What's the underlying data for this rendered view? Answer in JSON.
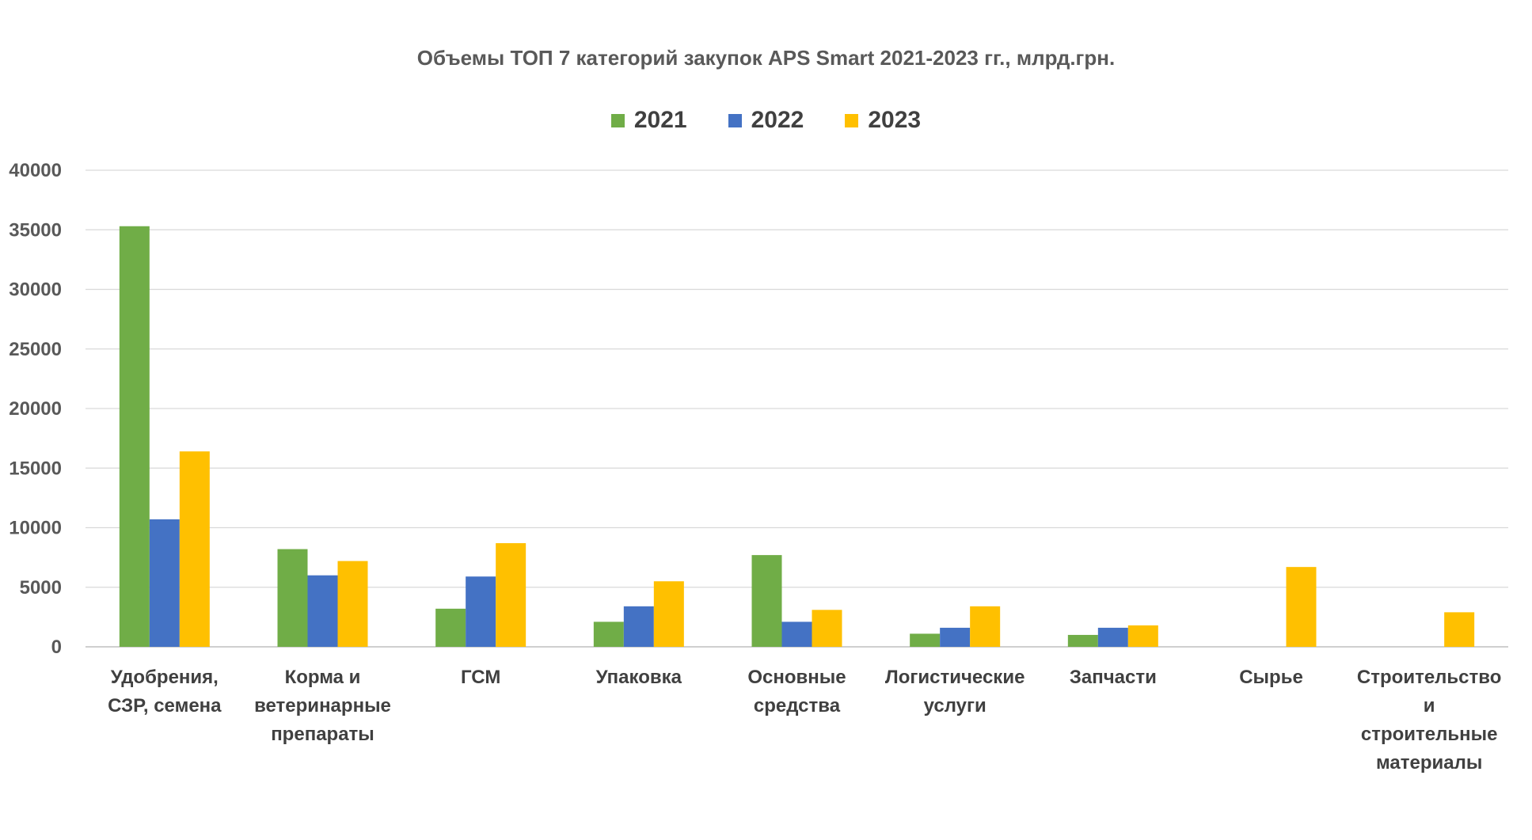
{
  "chart_data": {
    "type": "bar",
    "title": "Объемы ТОП 7 категорий закупок APS Smart  2021-2023 гг., млрд.грн.",
    "xlabel": "",
    "ylabel": "",
    "ylim": [
      0,
      40000
    ],
    "yticks": [
      0,
      5000,
      10000,
      15000,
      20000,
      25000,
      30000,
      35000,
      40000
    ],
    "grid": true,
    "legend_position": "top",
    "categories": [
      [
        "Удобрения,",
        "СЗР, семена"
      ],
      [
        "Корма и",
        "ветеринарные",
        "препараты"
      ],
      [
        "ГСМ"
      ],
      [
        "Упаковка"
      ],
      [
        "Основные",
        "средства"
      ],
      [
        "Логистические",
        "услуги"
      ],
      [
        "Запчасти"
      ],
      [
        "Сырье"
      ],
      [
        "Строительство",
        "и",
        "строительные",
        "материалы"
      ]
    ],
    "series": [
      {
        "name": "2021",
        "color": "#70AD47",
        "values": [
          35300,
          8200,
          3200,
          2100,
          7700,
          1100,
          1000,
          0,
          0
        ]
      },
      {
        "name": "2022",
        "color": "#4472C4",
        "values": [
          10700,
          6000,
          5900,
          3400,
          2100,
          1600,
          1600,
          0,
          0
        ]
      },
      {
        "name": "2023",
        "color": "#FFC000",
        "values": [
          16400,
          7200,
          8700,
          5500,
          3100,
          3400,
          1800,
          6700,
          2900
        ]
      }
    ]
  }
}
